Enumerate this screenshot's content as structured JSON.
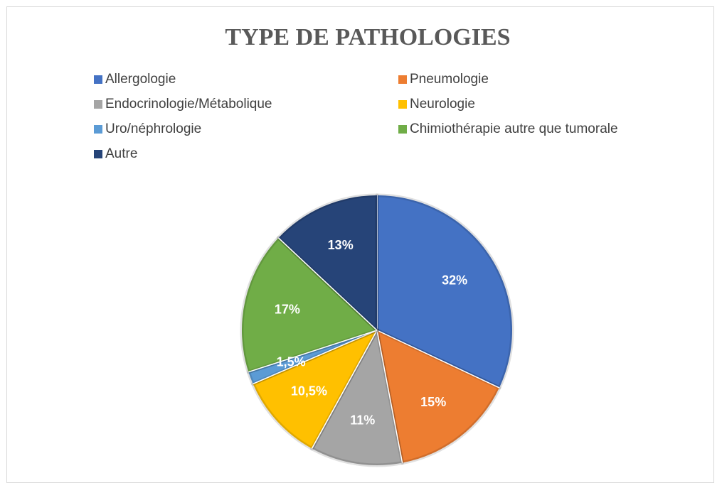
{
  "chart_data": {
    "type": "pie",
    "title": "TYPE DE PATHOLOGIES",
    "categories": [
      "Allergologie",
      "Pneumologie",
      "Endocrinologie/Métabolique",
      "Neurologie",
      "Uro/néphrologie",
      "Chimiothérapie autre que tumorale",
      "Autre"
    ],
    "values": [
      32,
      15,
      11,
      10.5,
      1.5,
      17,
      13
    ],
    "value_labels": [
      "32%",
      "15%",
      "11%",
      "10,5%",
      "1,5%",
      "17%",
      "13%"
    ],
    "colors": [
      "#4472c4",
      "#ed7d31",
      "#a5a5a5",
      "#ffc000",
      "#5b9bd5",
      "#70ad47",
      "#264478"
    ],
    "legend": "top"
  }
}
